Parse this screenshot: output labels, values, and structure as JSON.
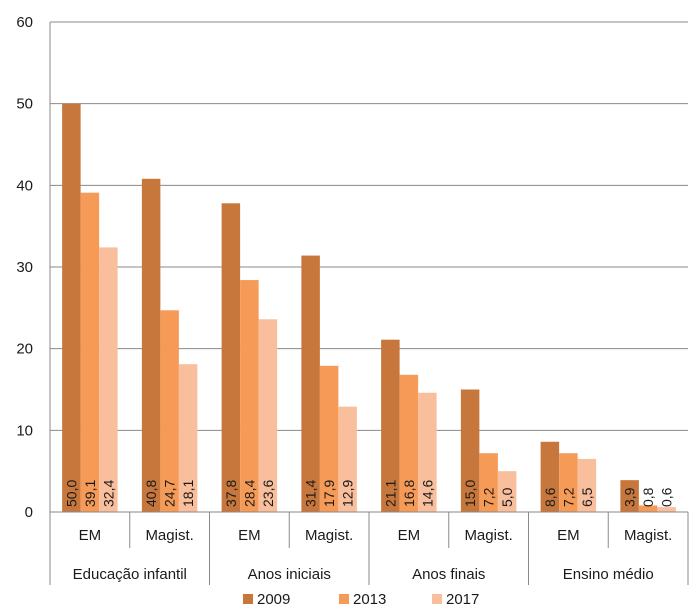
{
  "chart_data": {
    "type": "bar",
    "title": "",
    "xlabel": "",
    "ylabel": "",
    "ylim": [
      0,
      60
    ],
    "yticks": [
      0,
      10,
      20,
      30,
      40,
      50,
      60
    ],
    "grid": true,
    "legend_position": "bottom",
    "groups": [
      {
        "label": "Educação infantil",
        "categories": [
          "EM",
          "Magist."
        ]
      },
      {
        "label": "Anos iniciais",
        "categories": [
          "EM",
          "Magist."
        ]
      },
      {
        "label": "Anos finais",
        "categories": [
          "EM",
          "Magist."
        ]
      },
      {
        "label": "Ensino médio",
        "categories": [
          "EM",
          "Magist."
        ]
      }
    ],
    "categories": [
      "EM",
      "Magist.",
      "EM",
      "Magist.",
      "EM",
      "Magist.",
      "EM",
      "Magist."
    ],
    "series": [
      {
        "name": "2009",
        "color": "#c8773c",
        "values": [
          50.0,
          40.8,
          37.8,
          31.4,
          21.1,
          15.0,
          8.6,
          3.9
        ],
        "labels": [
          "50,0",
          "40,8",
          "37,8",
          "31,4",
          "21,1",
          "15,0",
          "8,6",
          "3,9"
        ]
      },
      {
        "name": "2013",
        "color": "#f59a57",
        "values": [
          39.1,
          24.7,
          28.4,
          17.9,
          16.8,
          7.2,
          7.2,
          0.8
        ],
        "labels": [
          "39,1",
          "24,7",
          "28,4",
          "17,9",
          "16,8",
          "7,2",
          "7,2",
          "0,8"
        ]
      },
      {
        "name": "2017",
        "color": "#f9bf9d",
        "values": [
          32.4,
          18.1,
          23.6,
          12.9,
          14.6,
          5.0,
          6.5,
          0.6
        ],
        "labels": [
          "32,4",
          "18,1",
          "23,6",
          "12,9",
          "14,6",
          "5,0",
          "6,5",
          "0,6"
        ]
      }
    ]
  },
  "colors": {
    "grid": "#8a8a8a",
    "axis": "#8a8a8a"
  }
}
